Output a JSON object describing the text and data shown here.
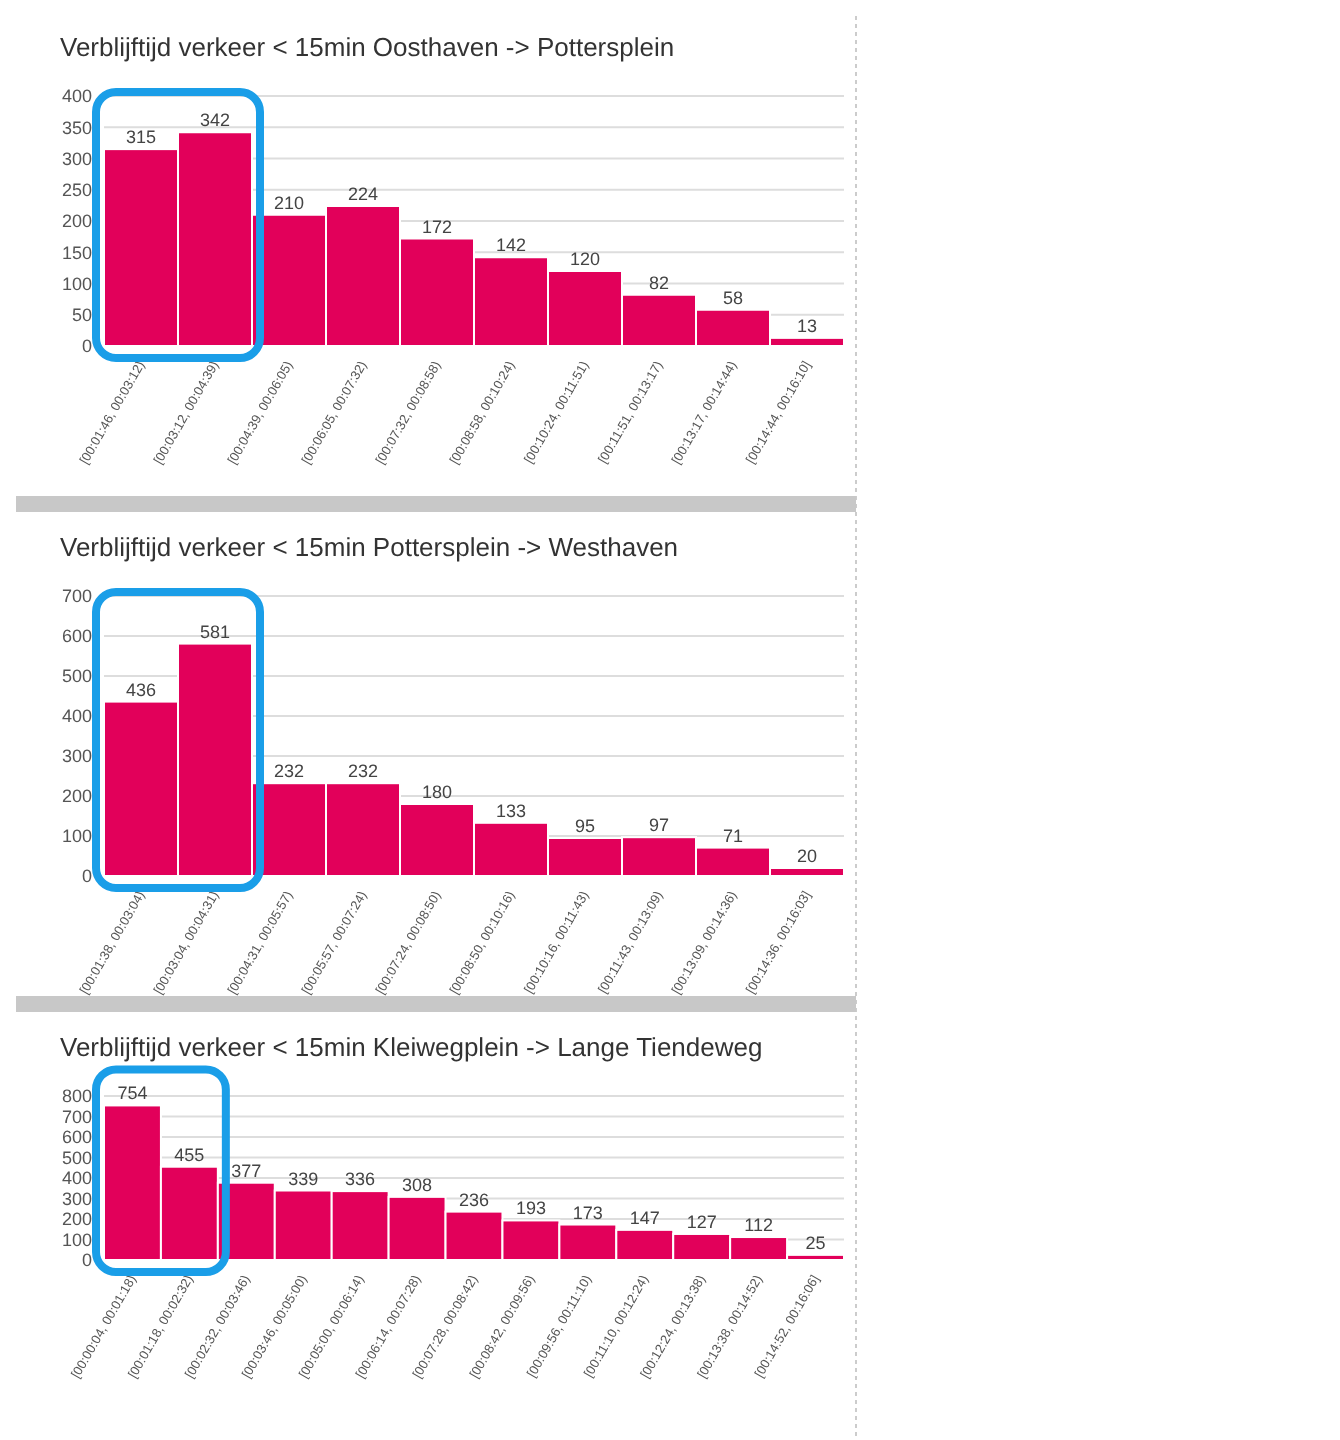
{
  "chart_data": [
    {
      "type": "bar",
      "title": "Verblijftijd verkeer < 15min Oosthaven -> Pottersplein",
      "categories": [
        "[00:01:46, 00:03:12)",
        "[00:03:12, 00:04:39)",
        "[00:04:39, 00:06:05)",
        "[00:06:05, 00:07:32)",
        "[00:07:32, 00:08:58)",
        "[00:08:58, 00:10:24)",
        "[00:10:24, 00:11:51)",
        "[00:11:51, 00:13:17)",
        "[00:13:17, 00:14:44)",
        "[00:14:44, 00:16:10]"
      ],
      "values": [
        315,
        342,
        210,
        224,
        172,
        142,
        120,
        82,
        58,
        13
      ],
      "color": "#e2005a",
      "ylim": [
        0,
        400
      ],
      "yticks": [
        0,
        50,
        100,
        150,
        200,
        250,
        300,
        350,
        400
      ],
      "grid": "y",
      "data_labels": true
    },
    {
      "type": "bar",
      "title": "Verblijftijd verkeer < 15min Pottersplein -> Westhaven",
      "categories": [
        "[00:01:38, 00:03:04)",
        "[00:03:04, 00:04:31)",
        "[00:04:31, 00:05:57)",
        "[00:05:57, 00:07:24)",
        "[00:07:24, 00:08:50)",
        "[00:08:50, 00:10:16)",
        "[00:10:16, 00:11:43)",
        "[00:11:43, 00:13:09)",
        "[00:13:09, 00:14:36)",
        "[00:14:36, 00:16:03]"
      ],
      "values": [
        436,
        581,
        232,
        232,
        180,
        133,
        95,
        97,
        71,
        20
      ],
      "color": "#e2005a",
      "ylim": [
        0,
        700
      ],
      "yticks": [
        0,
        100,
        200,
        300,
        400,
        500,
        600,
        700
      ],
      "grid": "y",
      "data_labels": true
    },
    {
      "type": "bar",
      "title": "Verblijftijd verkeer < 15min Kleiwegplein -> Lange Tiendeweg",
      "categories": [
        "[00:00:04, 00:01:18)",
        "[00:01:18, 00:02:32)",
        "[00:02:32, 00:03:46)",
        "[00:03:46, 00:05:00)",
        "[00:05:00, 00:06:14)",
        "[00:06:14, 00:07:28)",
        "[00:07:28, 00:08:42)",
        "[00:08:42, 00:09:56)",
        "[00:09:56, 00:11:10)",
        "[00:11:10, 00:12:24)",
        "[00:12:24, 00:13:38)",
        "[00:13:38, 00:14:52)",
        "[00:14:52, 00:16:06]"
      ],
      "values": [
        754,
        455,
        377,
        339,
        336,
        308,
        236,
        193,
        173,
        147,
        127,
        112,
        25
      ],
      "color": "#e2005a",
      "ylim": [
        0,
        800
      ],
      "yticks": [
        0,
        100,
        200,
        300,
        400,
        500,
        600,
        700,
        800
      ],
      "grid": "y",
      "data_labels": true
    }
  ]
}
